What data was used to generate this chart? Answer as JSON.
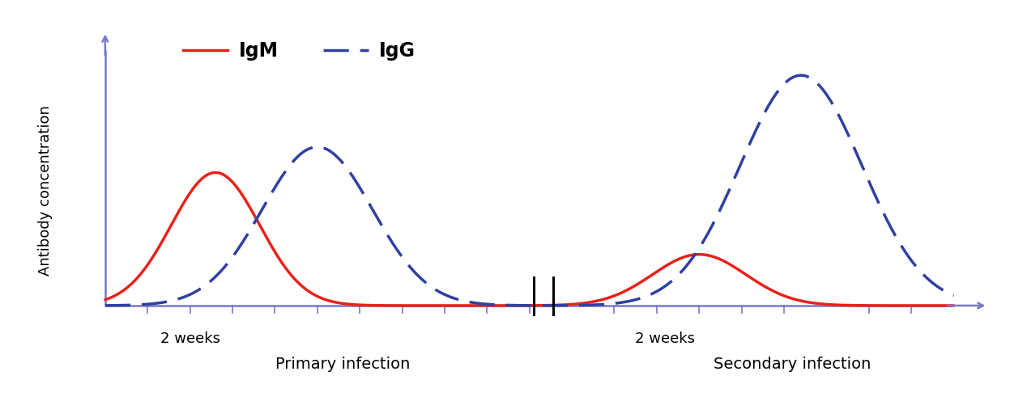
{
  "ylabel": "Antibody concentration",
  "igm_color": "#e8221a",
  "igg_color": "#3040a0",
  "axis_color": "#7878c8",
  "background_color": "#ffffff",
  "label_igm": "IgM",
  "label_igg": "IgG",
  "label_primary": "Primary infection",
  "label_secondary": "Secondary infection",
  "label_2weeks_primary": "2 weeks",
  "label_2weeks_secondary": "2 weeks",
  "xlim": [
    -0.15,
    10.5
  ],
  "ylim": [
    -0.08,
    1.08
  ],
  "mid1": 5.05,
  "mid2": 5.28,
  "igm_primary_amp": 0.52,
  "igm_primary_mu": 1.3,
  "igm_primary_sig": 0.52,
  "igm_secondary_amp": 0.2,
  "igm_secondary_mu": 7.0,
  "igm_secondary_sig": 0.55,
  "igg_primary_amp": 0.62,
  "igg_primary_mu": 2.5,
  "igg_primary_sig": 0.65,
  "igg_secondary_amp": 0.9,
  "igg_secondary_mu": 8.2,
  "igg_secondary_sig": 0.72,
  "linewidth": 2.5,
  "tick_positions": [
    0.5,
    1.0,
    1.5,
    2.0,
    2.5,
    3.0,
    3.5,
    4.0,
    4.5,
    5.0,
    6.0,
    6.5,
    7.0,
    7.5,
    8.0,
    9.0,
    9.5
  ]
}
